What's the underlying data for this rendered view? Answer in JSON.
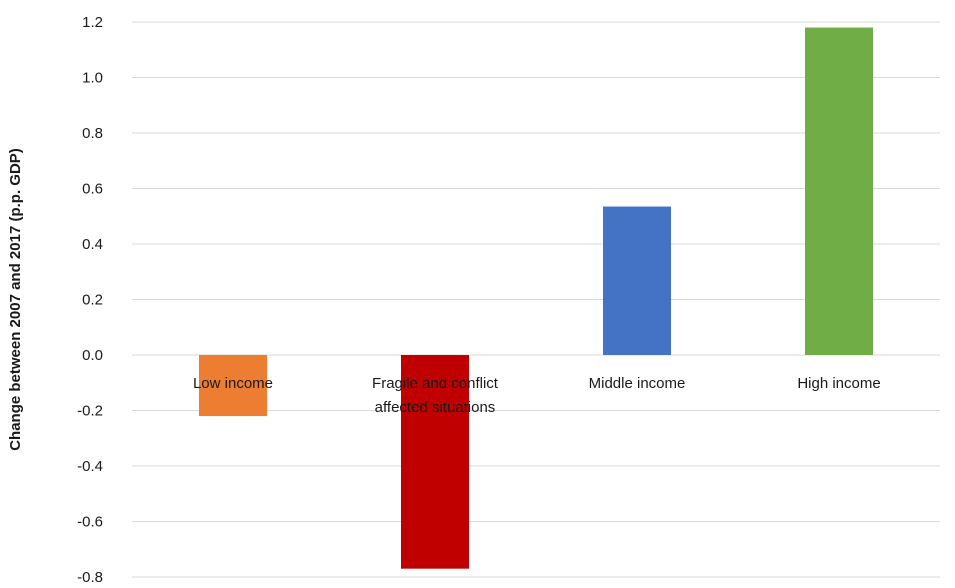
{
  "chart_data": {
    "type": "bar",
    "categories": [
      "Low income",
      [
        "Fragile and conflict",
        "affected situations"
      ],
      "Middle income",
      "High income"
    ],
    "values": [
      -0.22,
      -0.77,
      0.535,
      1.18
    ],
    "colors": [
      "#ED7D31",
      "#C00000",
      "#4472C4",
      "#70AD47"
    ],
    "title": "",
    "xlabel": "",
    "ylabel": "Change between 2007 and 2017 (p.p. GDP)",
    "ylim": [
      -0.8,
      1.2
    ],
    "yticks": [
      1.2,
      1.0,
      0.8,
      0.6,
      0.4,
      0.2,
      0.0,
      -0.2,
      -0.4,
      -0.6,
      -0.8
    ],
    "ytick_labels": [
      "1.2",
      "1.0",
      "0.8",
      "0.6",
      "0.4",
      "0.2",
      "0.0",
      "-0.2",
      "-0.4",
      "-0.6",
      "-0.8"
    ],
    "grid": true,
    "legend": "none"
  }
}
